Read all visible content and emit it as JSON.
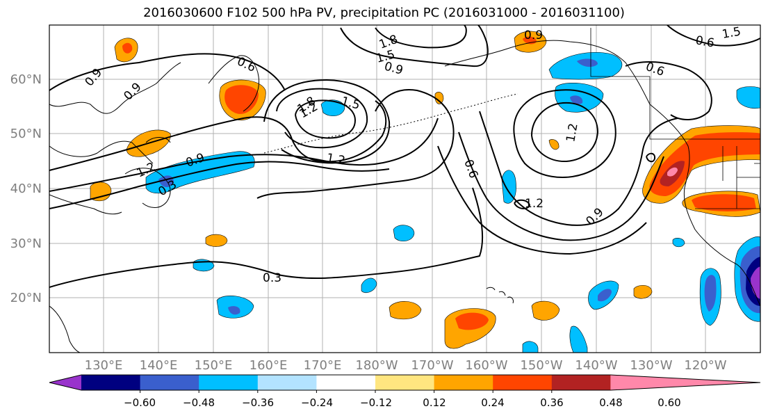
{
  "title": "2016030600 F102 500 hPa PV, precipitation PC (2016031000 - 2016031100)",
  "lat_labels": [
    "60°N",
    "50°N",
    "40°N",
    "30°N",
    "20°N"
  ],
  "lon_labels": [
    "130°E",
    "140°E",
    "150°E",
    "160°E",
    "170°E",
    "180°W",
    "170°W",
    "160°W",
    "150°W",
    "140°W",
    "130°W",
    "120°W"
  ],
  "contour_labels": [
    "0.9",
    "1.8",
    "1.5",
    "0.6",
    "0.9",
    "0.6",
    "0.9",
    "1.8",
    "1.5",
    "1.2",
    "0.9",
    "1.2",
    "0.3",
    "1.2",
    "0.6",
    "1.2",
    "0.9",
    "0.3",
    "1.2",
    "0.9",
    "1.5",
    "0.6"
  ],
  "colorbar": {
    "colors": [
      "#9933cc",
      "#000080",
      "#3a5fcd",
      "#00bfff",
      "#b3e3ff",
      "#ffffff",
      "#ffe680",
      "#ffa500",
      "#ff4500",
      "#b22222",
      "#ff88aa"
    ],
    "tick_labels": [
      "−0.60",
      "−0.48",
      "−0.36",
      "−0.24",
      "−0.12",
      "0.12",
      "0.24",
      "0.36",
      "0.48",
      "0.60"
    ]
  }
}
